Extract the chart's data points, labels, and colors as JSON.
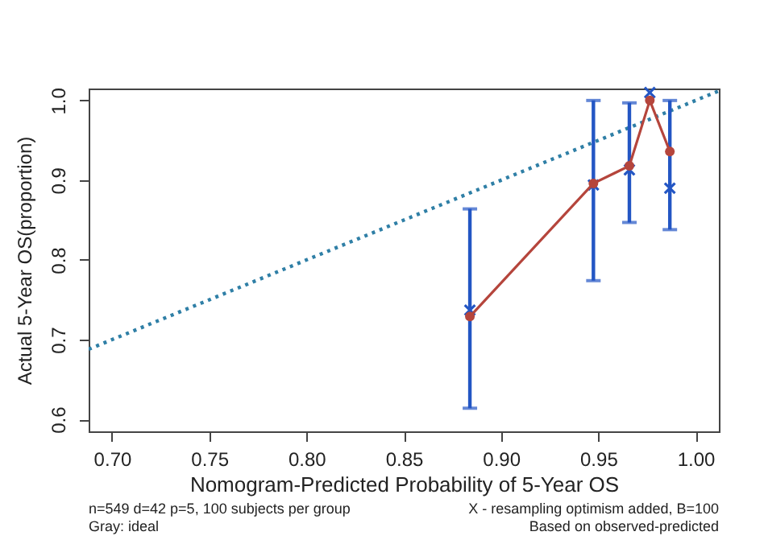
{
  "chart_data": {
    "type": "line",
    "xlabel": "Nomogram-Predicted Probability of 5-Year OS",
    "ylabel": "Actual 5-Year OS(proportion)",
    "xlim": [
      0.688,
      1.012
    ],
    "ylim": [
      0.585,
      1.015
    ],
    "xticks": [
      {
        "value": 0.7,
        "label": "0.70"
      },
      {
        "value": 0.75,
        "label": "0.75"
      },
      {
        "value": 0.8,
        "label": "0.80"
      },
      {
        "value": 0.85,
        "label": "0.85"
      },
      {
        "value": 0.9,
        "label": "0.90"
      },
      {
        "value": 0.95,
        "label": "0.95"
      },
      {
        "value": 1.0,
        "label": "1.00"
      }
    ],
    "yticks": [
      {
        "value": 0.6,
        "label": "0.6"
      },
      {
        "value": 0.7,
        "label": "0.7"
      },
      {
        "value": 0.8,
        "label": "0.8"
      },
      {
        "value": 0.9,
        "label": "0.9"
      },
      {
        "value": 1.0,
        "label": "1.0"
      }
    ],
    "x": [
      0.884,
      0.9475,
      0.966,
      0.9765,
      0.9868
    ],
    "series": [
      {
        "type": "line",
        "x": [
          0.688,
          1.012
        ],
        "values": [
          0.688,
          1.012
        ],
        "color": "#2f7fa6",
        "line_style": "dotted",
        "marker": "none"
      },
      {
        "type": "scatter",
        "marker": "cross",
        "color": "#2356c4",
        "values": [
          0.737,
          0.894,
          0.913,
          1.01,
          0.89
        ],
        "errors": [
          [
            0.614,
            0.864
          ],
          [
            0.774,
            1.0
          ],
          [
            0.847,
            0.997
          ],
          null,
          [
            0.838,
            1.0
          ]
        ]
      },
      {
        "type": "line",
        "marker": "circle",
        "color": "#b5453c",
        "values": [
          0.729,
          0.896,
          0.918,
          1.0,
          0.936
        ]
      }
    ],
    "annotations": [
      "n=549 d=42 p=5, 100 subjects per group",
      "Gray: ideal",
      "X - resampling optimism added, B=100",
      "Based on observed-predicted"
    ]
  }
}
